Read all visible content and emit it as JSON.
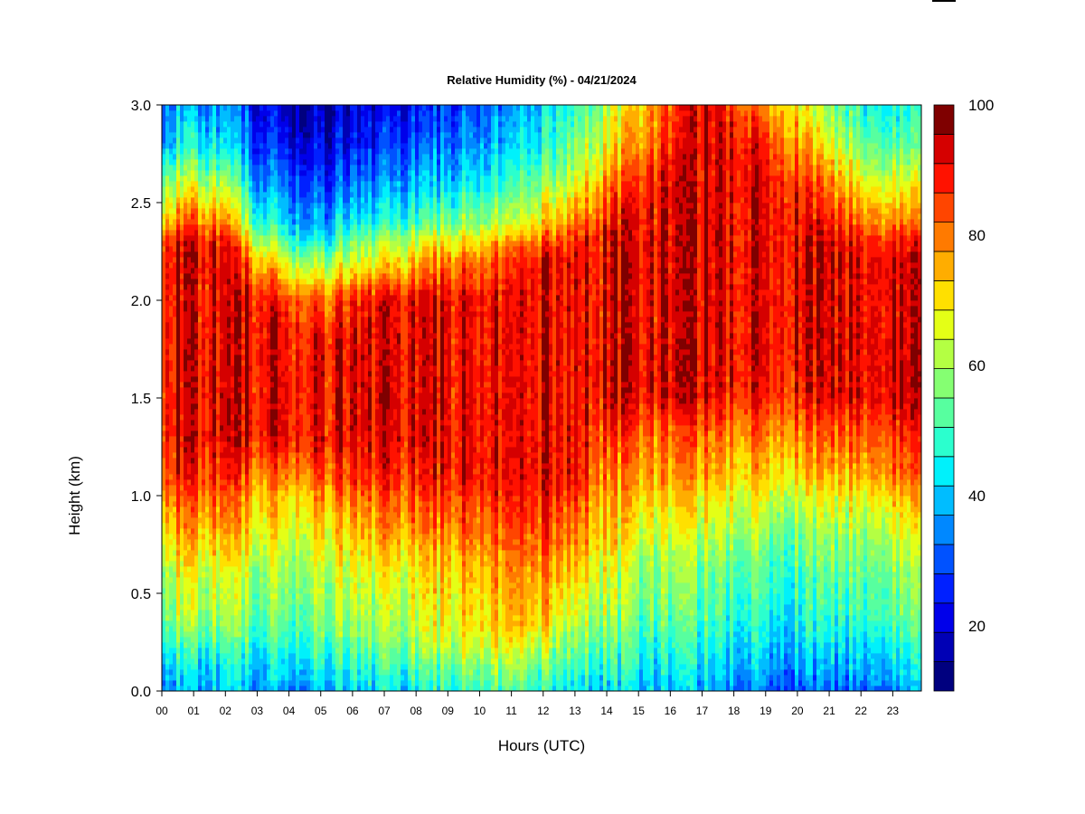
{
  "chart_data": {
    "type": "heatmap",
    "title": "Relative Humidity (%) - 04/21/2024",
    "xlabel": "Hours (UTC)",
    "ylabel": "Height (km)",
    "x_ticks": [
      "00",
      "01",
      "02",
      "03",
      "04",
      "05",
      "06",
      "07",
      "08",
      "09",
      "10",
      "11",
      "12",
      "13",
      "14",
      "15",
      "16",
      "17",
      "18",
      "19",
      "20",
      "21",
      "22",
      "23"
    ],
    "y_ticks": [
      "0.0",
      "0.5",
      "1.0",
      "1.5",
      "2.0",
      "2.5",
      "3.0"
    ],
    "xlim": [
      0,
      23.9
    ],
    "ylim": [
      0,
      3.0
    ],
    "colorbar": {
      "range": [
        10,
        100
      ],
      "step": 5,
      "tick_values": [
        20,
        40,
        60,
        80,
        100
      ],
      "tick_labels": [
        "20",
        "40",
        "60",
        "80",
        "100"
      ],
      "colors": [
        "#00007f",
        "#0000b5",
        "#0000ea",
        "#0020ff",
        "#0052ff",
        "#0088ff",
        "#00bdff",
        "#00f1fb",
        "#2bffce",
        "#57ff9f",
        "#85ff72",
        "#b4ff43",
        "#e4ff16",
        "#ffe000",
        "#ffad00",
        "#ff7a00",
        "#ff4500",
        "#ff1200",
        "#d50000",
        "#7f0000"
      ]
    },
    "profile_heights_km": [
      0.0,
      0.1,
      0.2,
      0.3,
      0.4,
      0.6,
      0.8,
      1.0,
      1.1,
      1.3,
      1.5,
      1.8,
      2.0,
      2.2,
      2.3,
      2.4,
      2.6,
      2.8,
      3.0
    ],
    "profile_hours": [
      0,
      1,
      2,
      3,
      4,
      5,
      6,
      7,
      8,
      9,
      10,
      11,
      12,
      13,
      14,
      15,
      16,
      17,
      18,
      19,
      20,
      21,
      22,
      23,
      23.9
    ],
    "rh_profiles": [
      [
        42,
        46,
        52,
        60,
        65,
        70,
        80,
        90,
        95,
        100,
        100,
        100,
        100,
        100,
        100,
        85,
        65,
        45,
        40
      ],
      [
        42,
        46,
        52,
        60,
        66,
        72,
        82,
        92,
        96,
        100,
        100,
        100,
        100,
        100,
        100,
        90,
        70,
        50,
        40
      ],
      [
        42,
        46,
        52,
        60,
        65,
        70,
        82,
        90,
        95,
        100,
        100,
        100,
        100,
        100,
        98,
        85,
        65,
        45,
        38
      ],
      [
        42,
        45,
        50,
        56,
        60,
        66,
        74,
        82,
        88,
        100,
        100,
        100,
        100,
        85,
        70,
        55,
        40,
        30,
        25
      ],
      [
        40,
        45,
        50,
        56,
        60,
        66,
        72,
        80,
        88,
        100,
        100,
        100,
        95,
        70,
        55,
        45,
        35,
        25,
        18
      ],
      [
        42,
        48,
        54,
        60,
        64,
        68,
        76,
        84,
        92,
        100,
        100,
        100,
        90,
        65,
        50,
        40,
        30,
        22,
        18
      ],
      [
        44,
        50,
        56,
        62,
        66,
        70,
        80,
        88,
        95,
        100,
        100,
        100,
        95,
        70,
        60,
        48,
        35,
        25,
        20
      ],
      [
        46,
        52,
        58,
        64,
        67,
        72,
        82,
        90,
        96,
        100,
        100,
        100,
        100,
        75,
        65,
        50,
        38,
        28,
        22
      ],
      [
        48,
        54,
        62,
        68,
        70,
        74,
        84,
        92,
        96,
        100,
        100,
        100,
        100,
        80,
        70,
        55,
        42,
        32,
        25
      ],
      [
        52,
        58,
        66,
        72,
        74,
        78,
        86,
        94,
        98,
        100,
        100,
        100,
        100,
        88,
        75,
        60,
        45,
        35,
        30
      ],
      [
        56,
        62,
        70,
        76,
        78,
        82,
        90,
        96,
        100,
        100,
        100,
        100,
        100,
        90,
        80,
        65,
        50,
        40,
        35
      ],
      [
        58,
        64,
        72,
        80,
        82,
        86,
        92,
        98,
        100,
        100,
        100,
        100,
        100,
        95,
        85,
        70,
        55,
        45,
        40
      ],
      [
        52,
        58,
        66,
        74,
        80,
        86,
        92,
        98,
        100,
        100,
        100,
        100,
        100,
        100,
        90,
        78,
        62,
        50,
        45
      ],
      [
        48,
        54,
        60,
        66,
        72,
        80,
        88,
        96,
        100,
        100,
        100,
        100,
        100,
        100,
        98,
        88,
        72,
        62,
        55
      ],
      [
        45,
        50,
        56,
        60,
        64,
        70,
        78,
        82,
        86,
        92,
        100,
        100,
        100,
        100,
        100,
        95,
        85,
        72,
        66
      ],
      [
        42,
        48,
        52,
        56,
        60,
        64,
        72,
        80,
        84,
        90,
        100,
        100,
        100,
        100,
        100,
        100,
        95,
        85,
        80
      ],
      [
        42,
        46,
        50,
        54,
        58,
        62,
        70,
        78,
        82,
        88,
        100,
        100,
        100,
        100,
        100,
        100,
        100,
        95,
        90
      ],
      [
        40,
        44,
        48,
        52,
        56,
        60,
        68,
        76,
        82,
        88,
        100,
        100,
        100,
        100,
        100,
        100,
        100,
        100,
        100
      ],
      [
        38,
        42,
        46,
        50,
        54,
        58,
        66,
        74,
        80,
        86,
        98,
        100,
        100,
        100,
        100,
        100,
        100,
        100,
        95
      ],
      [
        34,
        40,
        44,
        48,
        52,
        56,
        62,
        72,
        78,
        86,
        96,
        100,
        100,
        100,
        100,
        100,
        100,
        95,
        85
      ],
      [
        32,
        38,
        42,
        46,
        50,
        54,
        60,
        70,
        78,
        86,
        96,
        100,
        100,
        100,
        100,
        100,
        95,
        85,
        75
      ],
      [
        32,
        38,
        42,
        48,
        52,
        56,
        62,
        72,
        80,
        88,
        98,
        100,
        100,
        100,
        100,
        95,
        85,
        70,
        60
      ],
      [
        34,
        40,
        44,
        50,
        54,
        58,
        64,
        74,
        82,
        90,
        100,
        100,
        100,
        100,
        98,
        88,
        75,
        60,
        52
      ],
      [
        36,
        42,
        46,
        52,
        56,
        60,
        68,
        78,
        86,
        92,
        100,
        100,
        100,
        100,
        95,
        85,
        70,
        55,
        48
      ],
      [
        38,
        44,
        48,
        54,
        58,
        62,
        70,
        80,
        86,
        92,
        100,
        100,
        100,
        100,
        95,
        85,
        70,
        55,
        48
      ]
    ]
  }
}
